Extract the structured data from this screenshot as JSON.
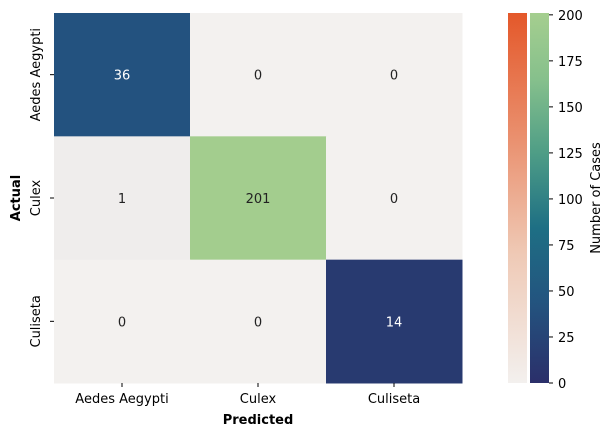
{
  "chart_data": {
    "type": "heatmap",
    "title": "",
    "xlabel": "Predicted",
    "ylabel": "Actual",
    "x_categories": [
      "Aedes Aegypti",
      "Culex",
      "Culiseta"
    ],
    "y_categories": [
      "Aedes Aegypti",
      "Culex",
      "Culiseta"
    ],
    "values": [
      [
        36,
        0,
        0
      ],
      [
        1,
        201,
        0
      ],
      [
        0,
        0,
        14
      ]
    ],
    "colorbar": {
      "label": "Number of Cases",
      "range": [
        0,
        201
      ],
      "ticks": [
        0,
        25,
        50,
        75,
        100,
        125,
        150,
        175,
        200
      ]
    },
    "colors": {
      "cell_36": "#23527f",
      "cell_1": "#efedec",
      "cell_0": "#f3f1ef",
      "cell_201": "#a3cd8e",
      "cell_14": "#283a70",
      "text_dark": "#222222",
      "text_light": "#ffffff"
    }
  }
}
